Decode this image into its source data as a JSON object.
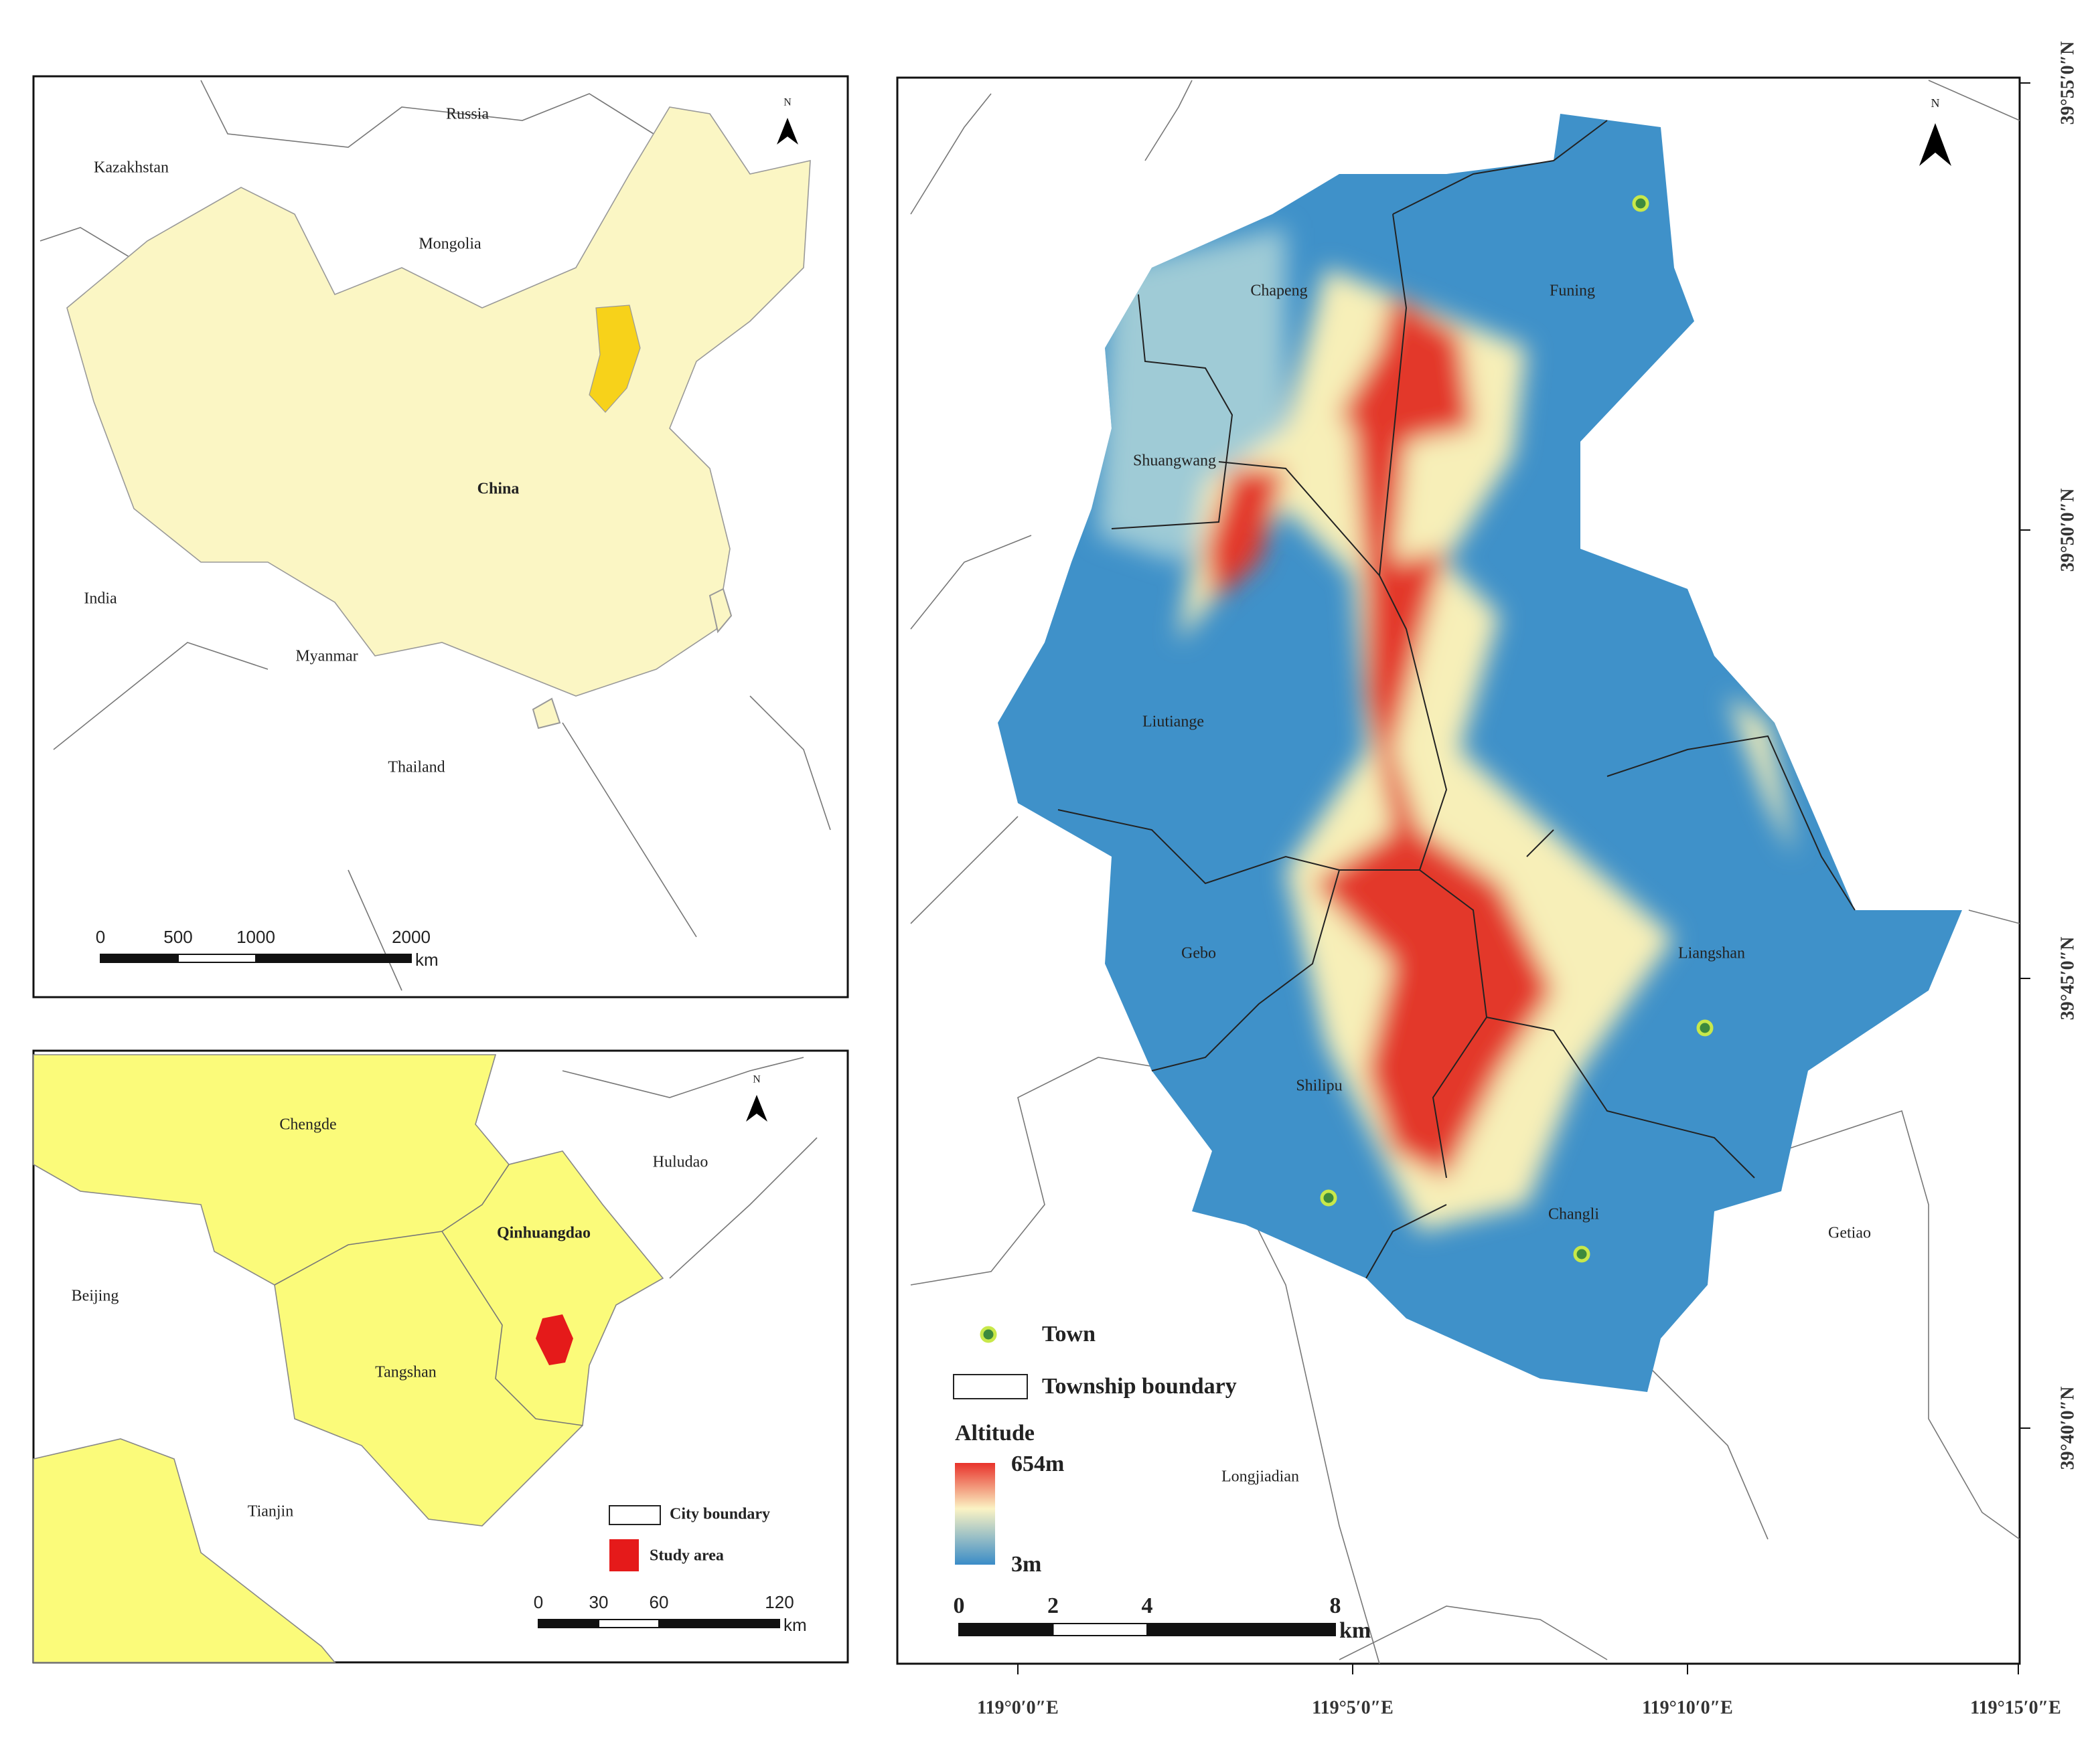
{
  "china_map": {
    "labels": [
      "Russia",
      "Kazakhstan",
      "Mongolia",
      "China",
      "India",
      "Myanmar",
      "Thailand"
    ],
    "north": "N",
    "scale_ticks": [
      0,
      500,
      1000,
      2000
    ],
    "scale_unit": "km"
  },
  "region_map": {
    "labels": [
      "Chengde",
      "Huludao",
      "Qinhuangdao",
      "Beijing",
      "Tangshan",
      "Tianjin"
    ],
    "north": "N",
    "legend": [
      "City boundary",
      "Study area"
    ],
    "scale_ticks": [
      0,
      30,
      60,
      120
    ],
    "scale_unit": "km"
  },
  "study_map": {
    "labels": [
      "Chapeng",
      "Funing",
      "Shuangwang",
      "Liutiange",
      "Gebo",
      "Liangshan",
      "Shilipu",
      "Changli",
      "Getiao",
      "Longjiadian"
    ],
    "north": "N",
    "legend": [
      "Town",
      "Township boundary"
    ],
    "altitude": {
      "title": "Altitude",
      "max": "654m",
      "min": "3m"
    },
    "scale_ticks": [
      0,
      2,
      4,
      8
    ],
    "scale_unit": "km",
    "lat_labels": [
      "39°55′0″N",
      "39°50′0″N",
      "39°45′0″N",
      "39°40′0″N"
    ],
    "lon_labels": [
      "119°0′0″E",
      "119°5′0″E",
      "119°10′0″E",
      "119°15′0″E"
    ]
  }
}
